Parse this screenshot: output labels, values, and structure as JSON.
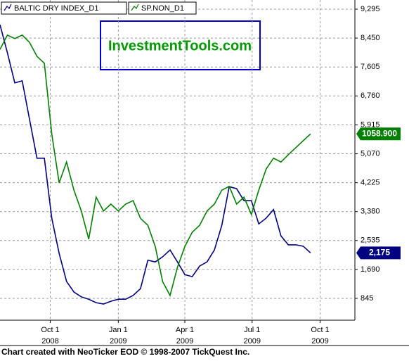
{
  "chart_data": {
    "type": "line",
    "annotation": "InvestmentTools.com",
    "footer": "Chart created with NeoTicker EOD © 1998-2007 TickQuest Inc.",
    "x": [
      "2008-07-25",
      "2008-08-04",
      "2008-08-14",
      "2008-08-24",
      "2008-09-03",
      "2008-09-13",
      "2008-09-23",
      "2008-10-03",
      "2008-10-13",
      "2008-10-23",
      "2008-11-02",
      "2008-11-12",
      "2008-11-22",
      "2008-12-02",
      "2008-12-12",
      "2008-12-22",
      "2009-01-01",
      "2009-01-11",
      "2009-01-21",
      "2009-01-31",
      "2009-02-10",
      "2009-02-20",
      "2009-03-02",
      "2009-03-12",
      "2009-03-22",
      "2009-04-01",
      "2009-04-11",
      "2009-04-21",
      "2009-05-01",
      "2009-05-11",
      "2009-05-21",
      "2009-05-31",
      "2009-06-10",
      "2009-06-20",
      "2009-06-30",
      "2009-07-10",
      "2009-07-20",
      "2009-07-30",
      "2009-08-09",
      "2009-08-19",
      "2009-08-29",
      "2009-09-08",
      "2009-09-18"
    ],
    "xlim": [
      "2008-07-25",
      "2009-11-17"
    ],
    "xticks": [
      {
        "value": "2008-10-01",
        "label": "Oct 1\n2008"
      },
      {
        "value": "2009-01-01",
        "label": "Jan 1\n2009"
      },
      {
        "value": "2009-04-01",
        "label": "Apr 1\n2009"
      },
      {
        "value": "2009-07-01",
        "label": "Jul 1\n2009"
      },
      {
        "value": "2009-10-01",
        "label": "Oct 1\n2009"
      }
    ],
    "ylim": [
      208,
      9562
    ],
    "yticks": [
      845,
      {
        "value": 1690,
        "label": "1,690"
      },
      {
        "value": 2535,
        "label": "2,535"
      },
      {
        "value": 3380,
        "label": "3,380"
      },
      {
        "value": 4225,
        "label": "4,225"
      },
      {
        "value": 5070,
        "label": "5,070"
      },
      {
        "value": 5915,
        "label": "5,915"
      },
      {
        "value": 6760,
        "label": "6,760"
      },
      {
        "value": 7605,
        "label": "7,605"
      },
      {
        "value": 8450,
        "label": "8,450"
      },
      {
        "value": 9295,
        "label": "9,295"
      }
    ],
    "y2lim": [
      629,
      1368
    ],
    "grid": true,
    "series": [
      {
        "name": "BALTIC DRY INDEX_D1",
        "color": "#000080",
        "values": [
          8840,
          8020,
          7140,
          7200,
          6070,
          4940,
          4940,
          3190,
          2160,
          1340,
          1030,
          890,
          820,
          720,
          680,
          760,
          820,
          820,
          930,
          1130,
          1960,
          1910,
          2060,
          2260,
          1910,
          1540,
          1480,
          1790,
          1910,
          2260,
          2980,
          4110,
          4050,
          3700,
          3700,
          3020,
          3190,
          3440,
          2670,
          2410,
          2410,
          2370,
          2175
        ],
        "value_labels": [
          null,
          null,
          null,
          null,
          null,
          null,
          null,
          null,
          null,
          null,
          null,
          null,
          null,
          null,
          null,
          null,
          null,
          null,
          null,
          null,
          null,
          null,
          null,
          null,
          null,
          null,
          null,
          null,
          null,
          null,
          null,
          null,
          null,
          null,
          null,
          null,
          null,
          null,
          null,
          null,
          null,
          null,
          "2,175"
        ]
      },
      {
        "name": "SP.NON_D1",
        "color": "#008000",
        "axis": "y2",
        "values": [
          1254,
          1287,
          1279,
          1287,
          1270,
          1238,
          1222,
          1059,
          946,
          994,
          929,
          881,
          816,
          913,
          881,
          897,
          881,
          897,
          905,
          864,
          848,
          799,
          718,
          686,
          751,
          799,
          832,
          848,
          881,
          897,
          929,
          938,
          897,
          913,
          873,
          929,
          978,
          1003,
          994,
          1011,
          1027,
          1043,
          1058.9
        ],
        "value_labels": [
          null,
          null,
          null,
          null,
          null,
          null,
          null,
          null,
          null,
          null,
          null,
          null,
          null,
          null,
          null,
          null,
          null,
          null,
          null,
          null,
          null,
          null,
          null,
          null,
          null,
          null,
          null,
          null,
          null,
          null,
          null,
          null,
          null,
          null,
          null,
          null,
          null,
          null,
          null,
          null,
          null,
          null,
          "1058.900"
        ]
      }
    ]
  }
}
